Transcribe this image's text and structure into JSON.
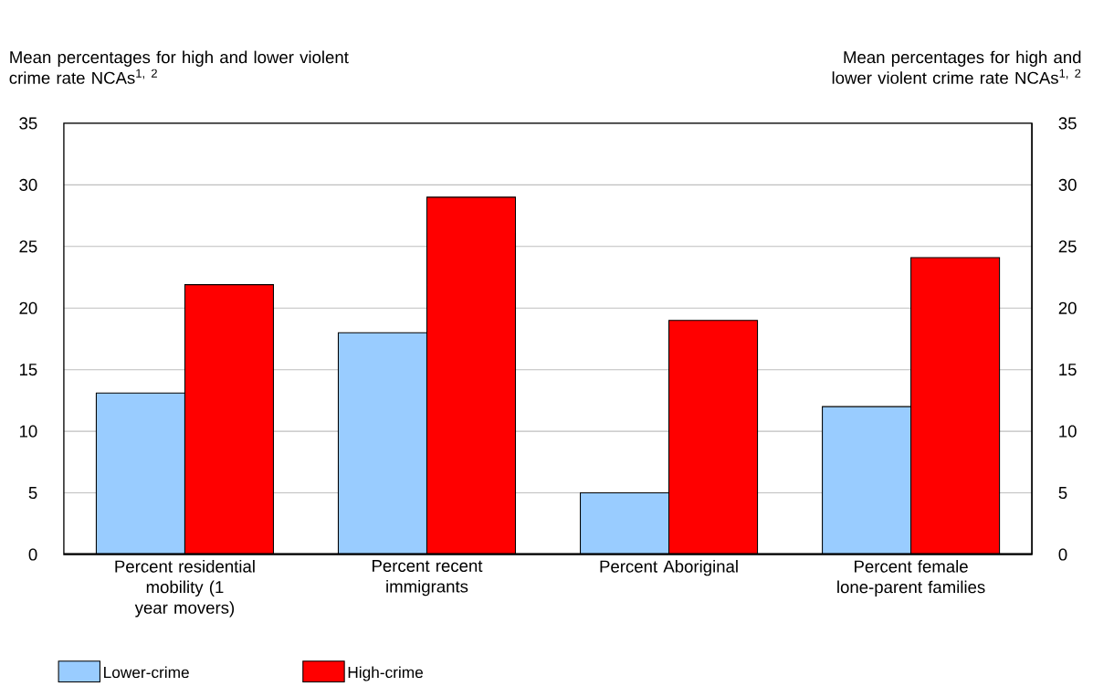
{
  "chart_data": {
    "type": "bar",
    "ylabel": "Mean percentages for high and lower violent crime rate NCAs$^{1, 2}$",
    "y2label": "Mean percentages for high and lower violent crime rate NCAs$^{1, 2}$",
    "categories": [
      "Percent residential mobility (1 year movers)",
      "Percent recent immigrants",
      "Percent Aboriginal",
      "Percent female lone-parent families"
    ],
    "series": [
      {
        "name": "Lower-crime",
        "color": "#99ccff",
        "values": [
          13.1,
          18,
          5,
          12
        ]
      },
      {
        "name": "High-crime",
        "color": "#ff0000",
        "values": [
          21.9,
          29,
          19,
          24.1
        ]
      }
    ],
    "ylim": [
      0,
      35
    ],
    "yticks": [
      0,
      5,
      10,
      15,
      20,
      25,
      30,
      35
    ],
    "y2lim": [
      0,
      35
    ],
    "y2ticks": [
      0,
      5,
      10,
      15,
      20,
      25,
      30,
      35
    ],
    "grid": "y",
    "legend": "bottom left"
  }
}
